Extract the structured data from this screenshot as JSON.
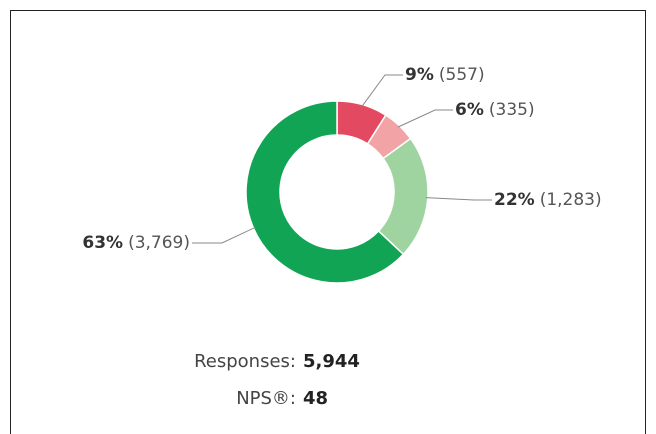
{
  "chart_data": {
    "type": "donut",
    "categories": [
      null,
      null,
      null,
      null
    ],
    "values": [
      9,
      6,
      22,
      63
    ],
    "value_labels": [
      "9%",
      "6%",
      "22%",
      "63%"
    ],
    "counts": [
      557,
      335,
      1283,
      3769
    ],
    "count_labels": [
      "(557)",
      "(335)",
      "(1,283)",
      "(3,769)"
    ],
    "colors": [
      "#e34a62",
      "#f2a3a6",
      "#9fd3a0",
      "#12a455"
    ],
    "summary": [
      {
        "label": "Responses:",
        "value": "5,944"
      },
      {
        "label": "NPS®:",
        "value": "48"
      }
    ]
  }
}
